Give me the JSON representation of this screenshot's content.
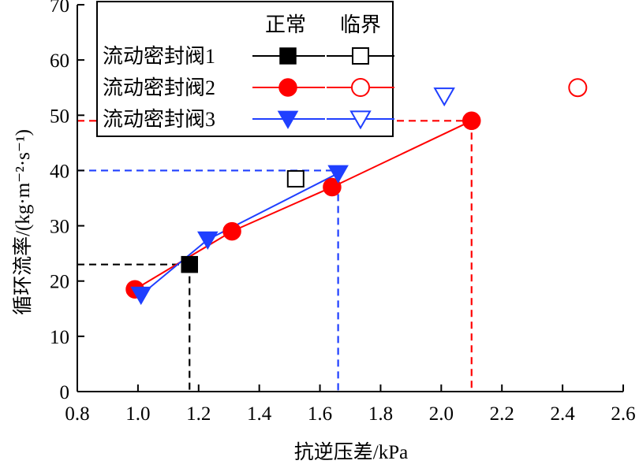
{
  "chart_data": {
    "type": "scatter",
    "xlabel": "抗逆压差/kPa",
    "ylabel": "循环流率/(kg·m⁻²·s⁻¹)",
    "xlim": [
      0.8,
      2.6
    ],
    "ylim": [
      0,
      70
    ],
    "xticks": [
      "0.8",
      "1.0",
      "1.2",
      "1.4",
      "1.6",
      "1.8",
      "2.0",
      "2.2",
      "2.4",
      "2.6"
    ],
    "yticks": [
      "0",
      "10",
      "20",
      "30",
      "40",
      "50",
      "60",
      "70"
    ],
    "legend": {
      "placement": "top-left",
      "header_normal": "正常",
      "header_critical": "临界"
    },
    "series": [
      {
        "name": "流动密封阀1",
        "color": "#000000",
        "marker": "square",
        "normal": [
          {
            "x": 1.17,
            "y": 23
          }
        ],
        "critical": [
          {
            "x": 1.52,
            "y": 38.5
          }
        ],
        "guide": {
          "x": 1.17,
          "y": 23,
          "color": "#000000"
        }
      },
      {
        "name": "流动密封阀2",
        "color": "#ff0000",
        "marker": "circle",
        "normal": [
          {
            "x": 0.99,
            "y": 18.5
          },
          {
            "x": 1.31,
            "y": 29
          },
          {
            "x": 1.64,
            "y": 37
          },
          {
            "x": 2.1,
            "y": 49
          }
        ],
        "critical": [
          {
            "x": 2.45,
            "y": 55
          }
        ],
        "guide": {
          "x": 2.1,
          "y": 49,
          "color": "#ff0000"
        }
      },
      {
        "name": "流动密封阀3",
        "color": "#1f3fff",
        "marker": "triangle-down",
        "normal": [
          {
            "x": 1.01,
            "y": 17.5
          },
          {
            "x": 1.23,
            "y": 27.5
          },
          {
            "x": 1.66,
            "y": 39.5
          }
        ],
        "critical": [
          {
            "x": 2.01,
            "y": 53.5
          }
        ],
        "guide": {
          "x": 1.66,
          "y": 40,
          "color": "#1f3fff"
        }
      }
    ]
  }
}
